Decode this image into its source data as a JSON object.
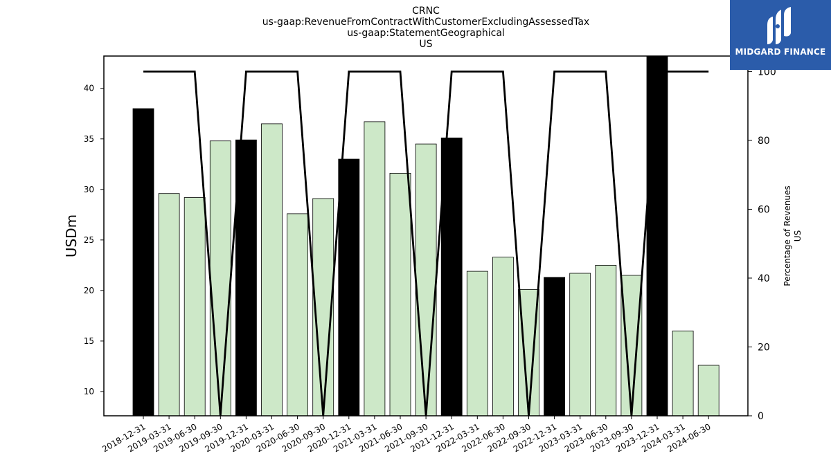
{
  "chart_data": {
    "type": "bar",
    "title_lines": [
      "CRNC",
      "us-gaap:RevenueFromContractWithCustomerExcludingAssessedTax",
      "us-gaap:StatementGeographical",
      "US"
    ],
    "ylabel": "USDm",
    "ylabel_right": [
      "Percentage of Revenues",
      "US"
    ],
    "ylim": [
      7.6,
      43.2
    ],
    "ylim_right": [
      0,
      104.5
    ],
    "yticks": [
      10,
      15,
      20,
      25,
      30,
      35,
      40
    ],
    "yticks_right": [
      0,
      20,
      40,
      60,
      80,
      100
    ],
    "categories": [
      "2018-12-31",
      "2019-03-31",
      "2019-06-30",
      "2019-09-30",
      "2019-12-31",
      "2020-03-31",
      "2020-06-30",
      "2020-09-30",
      "2020-12-31",
      "2021-03-31",
      "2021-06-30",
      "2021-09-30",
      "2021-12-31",
      "2022-03-31",
      "2022-06-30",
      "2022-09-30",
      "2022-12-31",
      "2023-03-31",
      "2023-06-30",
      "2023-09-30",
      "2023-12-31",
      "2024-03-31",
      "2024-06-30"
    ],
    "series": [
      {
        "type": "bar",
        "values": [
          38.0,
          29.6,
          29.2,
          34.8,
          34.9,
          36.5,
          27.6,
          29.1,
          33.0,
          36.7,
          31.6,
          34.5,
          35.1,
          21.9,
          23.3,
          20.1,
          21.3,
          21.7,
          22.5,
          21.5,
          43.2,
          16.0,
          12.6
        ],
        "highlight": [
          true,
          false,
          false,
          false,
          true,
          false,
          false,
          false,
          true,
          false,
          false,
          false,
          true,
          false,
          false,
          false,
          true,
          false,
          false,
          false,
          true,
          false,
          false
        ]
      },
      {
        "type": "line",
        "axis": "right",
        "values": [
          100,
          100,
          100,
          0,
          100,
          100,
          100,
          0,
          100,
          100,
          100,
          0,
          100,
          100,
          100,
          0,
          100,
          100,
          100,
          0,
          100,
          100,
          100
        ]
      }
    ],
    "colors": {
      "highlight_bar": "#000000",
      "bar": "#cde8c8",
      "bar_edge": "#000000",
      "line": "#000000"
    }
  },
  "logo": {
    "text": "MIDGARD FINANCE",
    "background": "#2b5caa"
  }
}
